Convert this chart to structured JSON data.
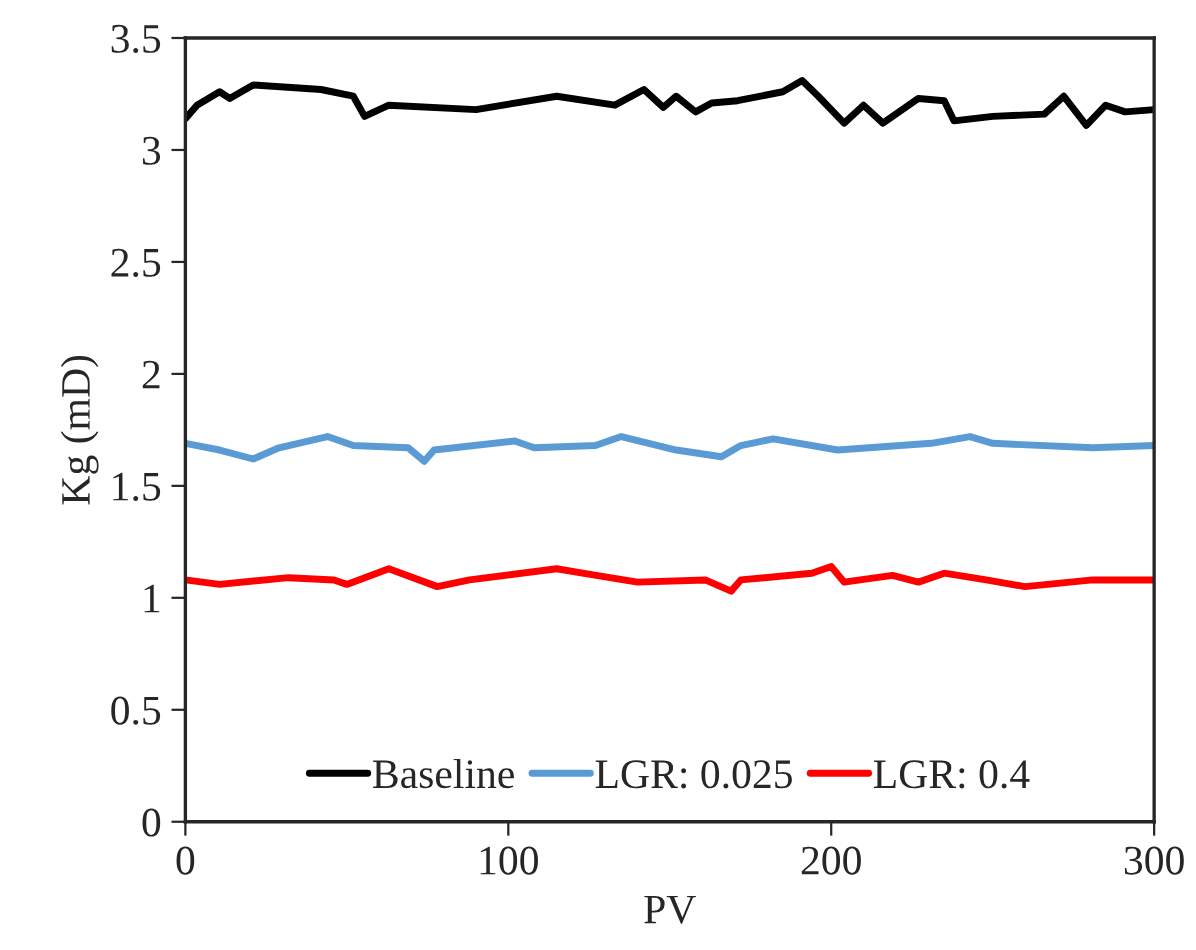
{
  "chart_data": {
    "type": "line",
    "xlabel": "PV",
    "ylabel": "Kg (mD)",
    "xlim": [
      0,
      300
    ],
    "xticks": [
      0,
      100,
      200,
      300
    ],
    "ylim": [
      0,
      3.5
    ],
    "yticks": [
      0,
      0.5,
      1,
      1.5,
      2,
      2.5,
      3,
      3.5
    ],
    "grid": false,
    "legend": "bottom",
    "marker": "none",
    "line_style": "solid",
    "series": [
      {
        "name": "Baseline",
        "color": "#000000",
        "x": [
          0,
          3.6,
          10.6,
          13.7,
          21,
          42,
          52,
          55.5,
          63,
          90,
          115,
          133,
          142,
          148,
          152,
          158,
          163,
          171,
          185,
          191,
          196,
          204,
          210,
          216,
          227,
          235,
          238,
          250,
          266,
          272,
          279,
          285,
          291,
          300
        ],
        "values": [
          3.14,
          3.2,
          3.26,
          3.23,
          3.29,
          3.27,
          3.24,
          3.15,
          3.2,
          3.18,
          3.24,
          3.2,
          3.27,
          3.19,
          3.24,
          3.17,
          3.21,
          3.22,
          3.26,
          3.31,
          3.24,
          3.12,
          3.2,
          3.12,
          3.23,
          3.22,
          3.13,
          3.15,
          3.16,
          3.24,
          3.11,
          3.2,
          3.17,
          3.18
        ]
      },
      {
        "name": "LGR: 0.025",
        "color": "#5b9bd5",
        "x": [
          0,
          10.6,
          21,
          29,
          44,
          52,
          69,
          74,
          77,
          102,
          108,
          127,
          135,
          152,
          166,
          172,
          182,
          202,
          231,
          243,
          250,
          281,
          300
        ],
        "values": [
          1.69,
          1.66,
          1.62,
          1.67,
          1.72,
          1.68,
          1.67,
          1.61,
          1.66,
          1.7,
          1.67,
          1.68,
          1.72,
          1.66,
          1.63,
          1.68,
          1.71,
          1.66,
          1.69,
          1.72,
          1.69,
          1.67,
          1.68
        ]
      },
      {
        "name": "LGR: 0.4",
        "color": "#ff0000",
        "x": [
          0,
          10.6,
          32,
          46,
          50,
          63,
          78,
          88,
          115,
          123,
          140,
          161,
          169,
          172,
          194,
          200,
          204,
          219,
          227,
          235,
          248,
          260,
          281,
          300
        ],
        "values": [
          1.08,
          1.06,
          1.09,
          1.08,
          1.06,
          1.13,
          1.05,
          1.08,
          1.13,
          1.11,
          1.07,
          1.08,
          1.03,
          1.08,
          1.11,
          1.14,
          1.07,
          1.1,
          1.07,
          1.11,
          1.08,
          1.05,
          1.08,
          1.08
        ]
      }
    ]
  }
}
